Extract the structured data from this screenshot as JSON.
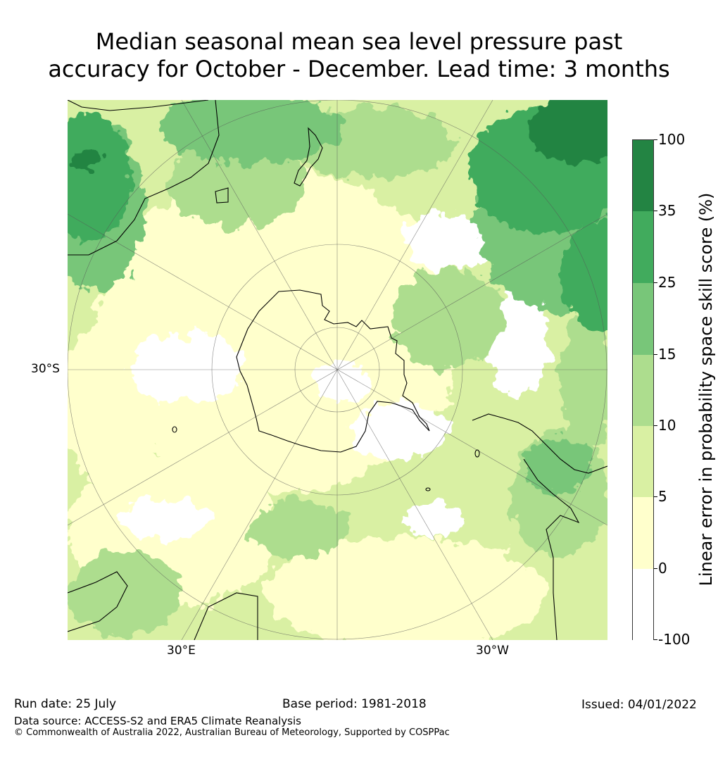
{
  "title": {
    "line1": "Median seasonal mean sea level pressure past",
    "line2": "accuracy for October - December. Lead time: 3 months"
  },
  "map": {
    "projection": "south-polar-stereographic",
    "labels": {
      "left_lat": "30°S",
      "bottom_left_lon": "30°E",
      "bottom_right_lon": "30°W"
    }
  },
  "colorbar": {
    "label": "Linear error in probability space skill score (%)",
    "ticks": [
      "100",
      "35",
      "25",
      "15",
      "10",
      "5",
      "0",
      "-100"
    ],
    "bins": [
      {
        "range": "35 to 100",
        "color": "#238443"
      },
      {
        "range": "25 to 35",
        "color": "#41ab5d"
      },
      {
        "range": "15 to 25",
        "color": "#78c679"
      },
      {
        "range": "10 to 15",
        "color": "#addd8e"
      },
      {
        "range": "5 to 10",
        "color": "#d9f0a3"
      },
      {
        "range": "0 to 5",
        "color": "#ffffcc"
      },
      {
        "range": "-100 to 0",
        "color": "#ffffff"
      }
    ]
  },
  "footer": {
    "run_date": "Run date: 25 July",
    "base_period": "Base period: 1981-2018",
    "issued": "Issued: 04/01/2022",
    "data_source": "Data source: ACCESS-S2 and ERA5 Climate Reanalysis",
    "copyright": "© Commonwealth of Australia 2022, Australian Bureau of Meteorology, Supported by COSPPac"
  }
}
